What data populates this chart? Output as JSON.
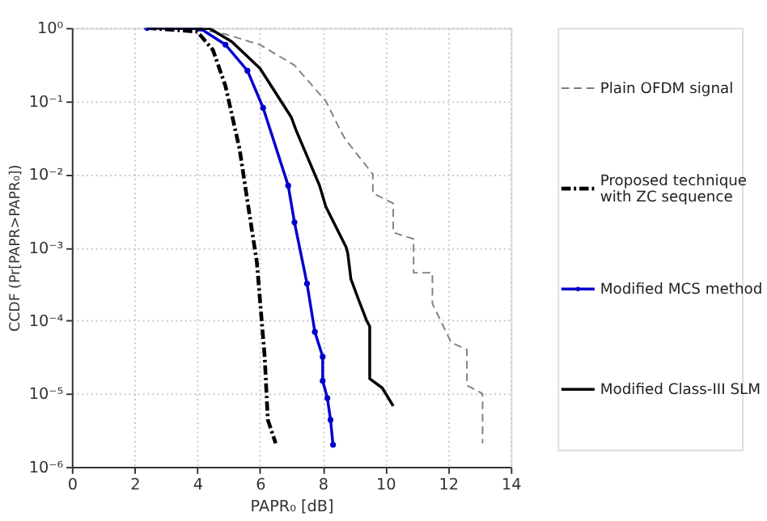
{
  "chart_data": {
    "type": "line",
    "xlabel": "PAPR₀ [dB]",
    "ylabel": "CCDF (Pr[PAPR>PAPR₀])",
    "log": "y",
    "grid": true,
    "legend": "right",
    "xlim": [
      0,
      14
    ],
    "xticks": [
      0,
      2,
      4,
      6,
      8,
      10,
      12,
      14
    ],
    "ylim": [
      1e-06,
      1
    ],
    "yticks": [
      {
        "value": 1e-06,
        "label": "10⁻⁶"
      },
      {
        "value": 1e-05,
        "label": "10⁻⁵"
      },
      {
        "value": 0.0001,
        "label": "10⁻⁴"
      },
      {
        "value": 0.001,
        "label": "10⁻³"
      },
      {
        "value": 0.01,
        "label": "10⁻²"
      },
      {
        "value": 0.1,
        "label": "10⁻¹"
      },
      {
        "value": 1,
        "label": "10⁰"
      }
    ],
    "series": [
      {
        "name": "Plain  OFDM signal",
        "color": "#808080",
        "line_style": "dashed",
        "x": [
          2.4,
          4.1,
          4.9,
          6,
          7.1,
          8.1,
          8.6,
          8.75,
          9.6,
          9.6,
          10.25,
          10.25,
          10.9,
          10.9,
          11.5,
          11.5,
          11.85,
          12.1,
          12.6,
          12.6,
          13.1,
          13.1
        ],
        "values": [
          1,
          0.955,
          0.822,
          0.589,
          0.309,
          0.1,
          0.037,
          0.029,
          0.01,
          0.0055,
          0.004,
          0.0016,
          0.0013,
          0.00045,
          0.00045,
          0.00017,
          8.3e-05,
          5e-05,
          4e-05,
          1.3e-05,
          1e-05,
          2.1e-06
        ]
      },
      {
        "name": "Proposed   technique with ZC sequence",
        "color": "#000000",
        "line_style": "dashdot",
        "x": [
          2.4,
          4.0,
          4.5,
          4.9,
          5.35,
          5.6,
          5.9,
          6.15,
          6.25,
          6.5
        ],
        "values": [
          1,
          0.89,
          0.5,
          0.16,
          0.022,
          0.0043,
          0.00063,
          3.2e-05,
          4.4e-06,
          2.1e-06
        ]
      },
      {
        "name": "Modified MCS method",
        "color": "#0000cc",
        "line_style": "solid",
        "marker": "circle",
        "x": [
          2.4,
          4.1,
          4.9,
          5.6,
          6.1,
          6.9,
          7.1,
          7.5,
          7.75,
          8.0,
          8.0,
          8.15,
          8.25,
          8.33
        ],
        "values": [
          1,
          0.98,
          0.59,
          0.26,
          0.081,
          0.007,
          0.0022,
          0.00032,
          7e-05,
          3.2e-05,
          1.5e-05,
          8.7e-06,
          4.4e-06,
          2e-06
        ]
      },
      {
        "name": "Modified Class-III SLM",
        "color": "#000000",
        "line_style": "solid",
        "x": [
          2.4,
          4.4,
          5.1,
          6,
          7,
          7.15,
          7.9,
          8.1,
          8.75,
          8.8,
          8.9,
          9.15,
          9.4,
          9.5,
          9.5,
          9.9,
          10.25
        ],
        "values": [
          1,
          0.98,
          0.65,
          0.28,
          0.06,
          0.04,
          0.007,
          0.0036,
          0.001,
          0.00083,
          0.00037,
          0.00019,
          0.0001,
          8.3e-05,
          1.6e-05,
          1.2e-05,
          6.8e-06
        ]
      }
    ]
  }
}
